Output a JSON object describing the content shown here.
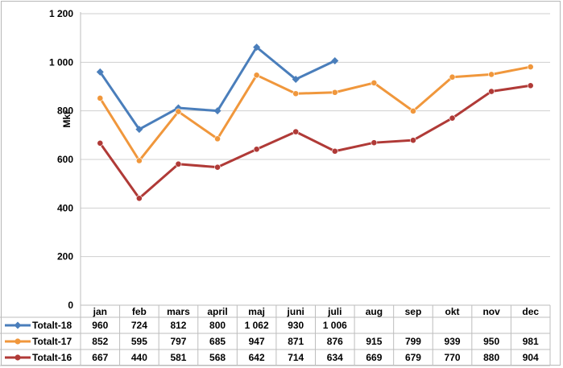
{
  "chart_data": {
    "type": "line",
    "ylabel": "Mkr",
    "ylim": [
      0,
      1200
    ],
    "yticks": [
      "0",
      "200",
      "400",
      "600",
      "800",
      "1 000",
      "1 200"
    ],
    "categories": [
      "jan",
      "feb",
      "mars",
      "april",
      "maj",
      "juni",
      "juli",
      "aug",
      "sep",
      "okt",
      "nov",
      "dec"
    ],
    "grid": true,
    "legend": "data-table",
    "series": [
      {
        "name": "Totalt-18",
        "color": "#4a7ebb",
        "marker": "diamond",
        "values": [
          960,
          724,
          812,
          800,
          1062,
          930,
          1006,
          null,
          null,
          null,
          null,
          null
        ],
        "labels": [
          "960",
          "724",
          "812",
          "800",
          "1 062",
          "930",
          "1 006",
          "",
          "",
          "",
          "",
          ""
        ]
      },
      {
        "name": "Totalt-17",
        "color": "#f0973c",
        "marker": "circle",
        "values": [
          852,
          595,
          797,
          685,
          947,
          871,
          876,
          915,
          799,
          939,
          950,
          981
        ],
        "labels": [
          "852",
          "595",
          "797",
          "685",
          "947",
          "871",
          "876",
          "915",
          "799",
          "939",
          "950",
          "981"
        ]
      },
      {
        "name": "Totalt-16",
        "color": "#b03a37",
        "marker": "circle",
        "values": [
          667,
          440,
          581,
          568,
          642,
          714,
          634,
          669,
          679,
          770,
          880,
          904
        ],
        "labels": [
          "667",
          "440",
          "581",
          "568",
          "642",
          "714",
          "634",
          "669",
          "679",
          "770",
          "880",
          "904"
        ]
      }
    ]
  }
}
